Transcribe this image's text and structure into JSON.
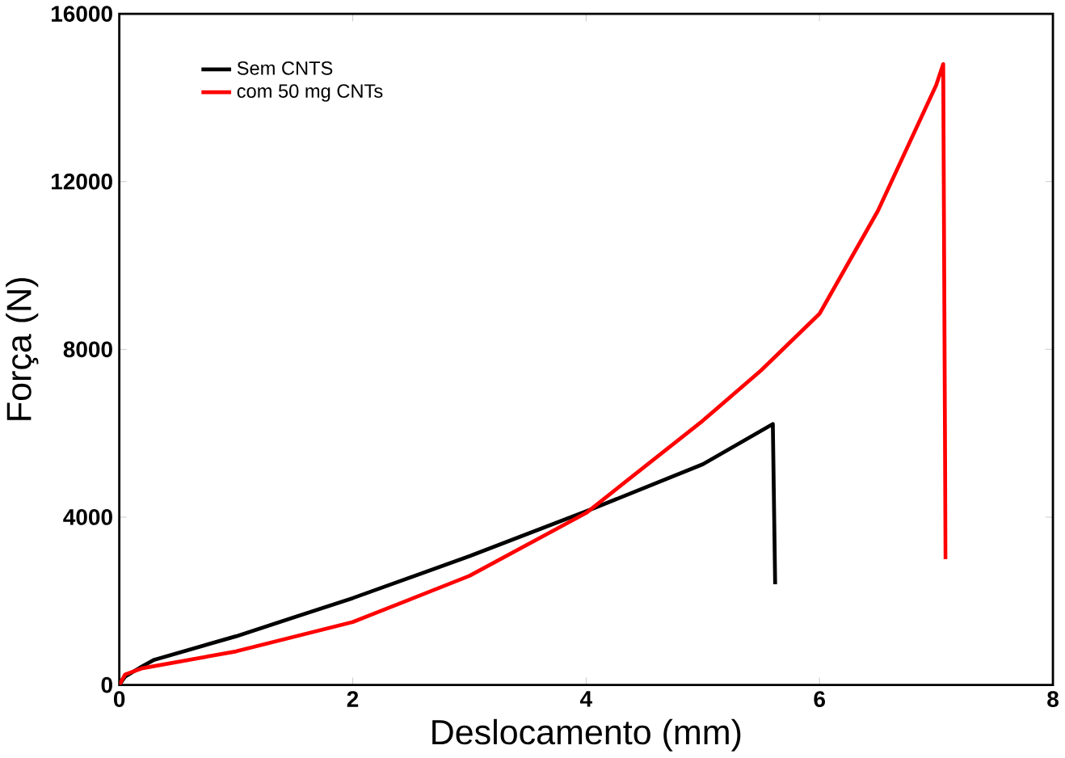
{
  "chart_data": {
    "type": "line",
    "xlabel": "Deslocamento (mm)",
    "ylabel": "Força (N)",
    "xlim": [
      0,
      8
    ],
    "ylim": [
      0,
      16000
    ],
    "xticks": [
      0,
      2,
      4,
      6,
      8
    ],
    "yticks": [
      0,
      4000,
      8000,
      12000,
      16000
    ],
    "grid": false,
    "legend": "top left",
    "series": [
      {
        "name": "Sem CNTS",
        "color": "#000000",
        "x": [
          0,
          0.05,
          0.2,
          0.3,
          1,
          2,
          3,
          4,
          5,
          5.6,
          5.62
        ],
        "values": [
          0,
          200,
          450,
          600,
          1160,
          2070,
          3070,
          4140,
          5260,
          6220,
          2400
        ]
      },
      {
        "name": "com 50 mg CNTs",
        "color": "#ff0000",
        "x": [
          0,
          0.05,
          0.2,
          1,
          2,
          3,
          4,
          5,
          5.5,
          6,
          6.5,
          7,
          7.06,
          7.08
        ],
        "values": [
          0,
          250,
          400,
          800,
          1500,
          2600,
          4100,
          6300,
          7500,
          8850,
          11300,
          14300,
          14800,
          3000
        ]
      }
    ]
  }
}
